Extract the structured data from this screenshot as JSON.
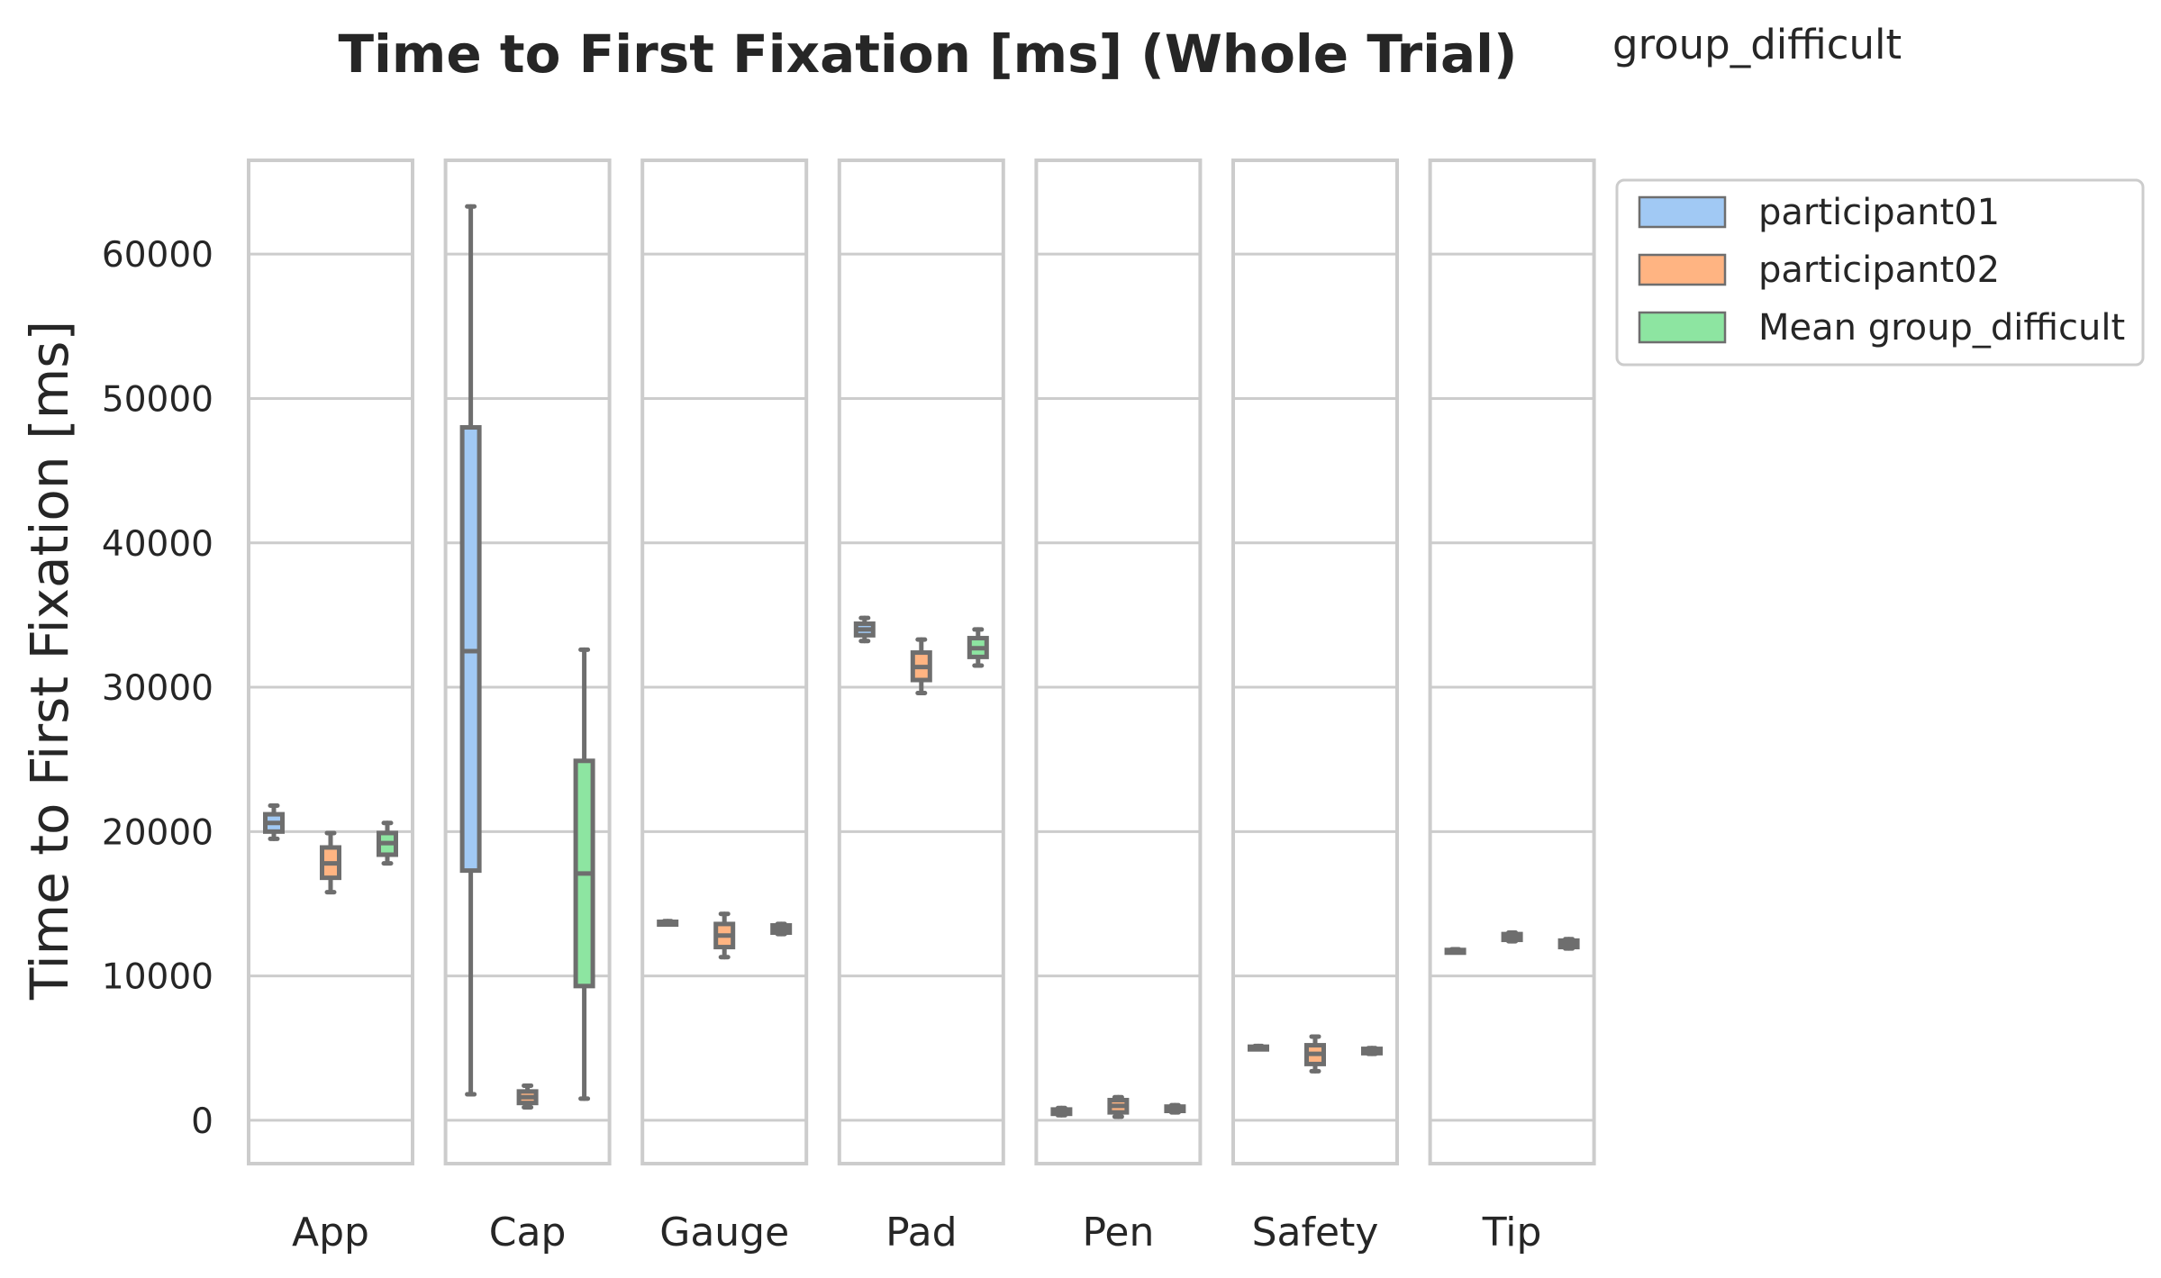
{
  "chart_data": {
    "type": "box",
    "title": "Time to First Fixation [ms] (Whole Trial)",
    "subtitle": "group_difficult",
    "ylabel": "Time to First Fixation [ms]",
    "xlabel": "",
    "ylim": [
      -3000,
      66500
    ],
    "yticks": [
      0,
      10000,
      20000,
      30000,
      40000,
      50000,
      60000
    ],
    "grid": true,
    "legend_position": "outside-right",
    "categories": [
      "App",
      "Cap",
      "Gauge",
      "Pad",
      "Pen",
      "Safety",
      "Tip"
    ],
    "series": [
      {
        "name": "participant01",
        "color": "#a1c9f4",
        "boxes": [
          {
            "min": 19500,
            "q1": 20000,
            "median": 20600,
            "q3": 21200,
            "max": 21800
          },
          {
            "min": 1800,
            "q1": 17300,
            "median": 32500,
            "q3": 48000,
            "max": 63300
          },
          {
            "min": 13600,
            "q1": 13650,
            "median": 13700,
            "q3": 13750,
            "max": 13800
          },
          {
            "min": 33200,
            "q1": 33600,
            "median": 34000,
            "q3": 34400,
            "max": 34800
          },
          {
            "min": 350,
            "q1": 450,
            "median": 600,
            "q3": 750,
            "max": 850
          },
          {
            "min": 4950,
            "q1": 5000,
            "median": 5050,
            "q3": 5100,
            "max": 5150
          },
          {
            "min": 11650,
            "q1": 11700,
            "median": 11750,
            "q3": 11800,
            "max": 11850
          }
        ]
      },
      {
        "name": "participant02",
        "color": "#ffb482",
        "boxes": [
          {
            "min": 15800,
            "q1": 16800,
            "median": 17800,
            "q3": 18900,
            "max": 19900
          },
          {
            "min": 900,
            "q1": 1200,
            "median": 1600,
            "q3": 2000,
            "max": 2400
          },
          {
            "min": 11300,
            "q1": 12000,
            "median": 12800,
            "q3": 13600,
            "max": 14300
          },
          {
            "min": 29600,
            "q1": 30500,
            "median": 31400,
            "q3": 32400,
            "max": 33300
          },
          {
            "min": 250,
            "q1": 550,
            "median": 1000,
            "q3": 1400,
            "max": 1600
          },
          {
            "min": 3400,
            "q1": 3900,
            "median": 4600,
            "q3": 5200,
            "max": 5800
          },
          {
            "min": 12400,
            "q1": 12500,
            "median": 12700,
            "q3": 12900,
            "max": 13000
          }
        ]
      },
      {
        "name": "Mean group_difficult",
        "color": "#8de5a1",
        "boxes": [
          {
            "min": 17800,
            "q1": 18400,
            "median": 19200,
            "q3": 19900,
            "max": 20600
          },
          {
            "min": 1500,
            "q1": 9300,
            "median": 17100,
            "q3": 24900,
            "max": 32600
          },
          {
            "min": 12900,
            "q1": 13000,
            "median": 13250,
            "q3": 13500,
            "max": 13600
          },
          {
            "min": 31500,
            "q1": 32100,
            "median": 32700,
            "q3": 33400,
            "max": 34000
          },
          {
            "min": 550,
            "q1": 650,
            "median": 800,
            "q3": 950,
            "max": 1050
          },
          {
            "min": 4600,
            "q1": 4650,
            "median": 4800,
            "q3": 4950,
            "max": 5000
          },
          {
            "min": 11900,
            "q1": 12000,
            "median": 12200,
            "q3": 12450,
            "max": 12550
          }
        ]
      }
    ]
  }
}
